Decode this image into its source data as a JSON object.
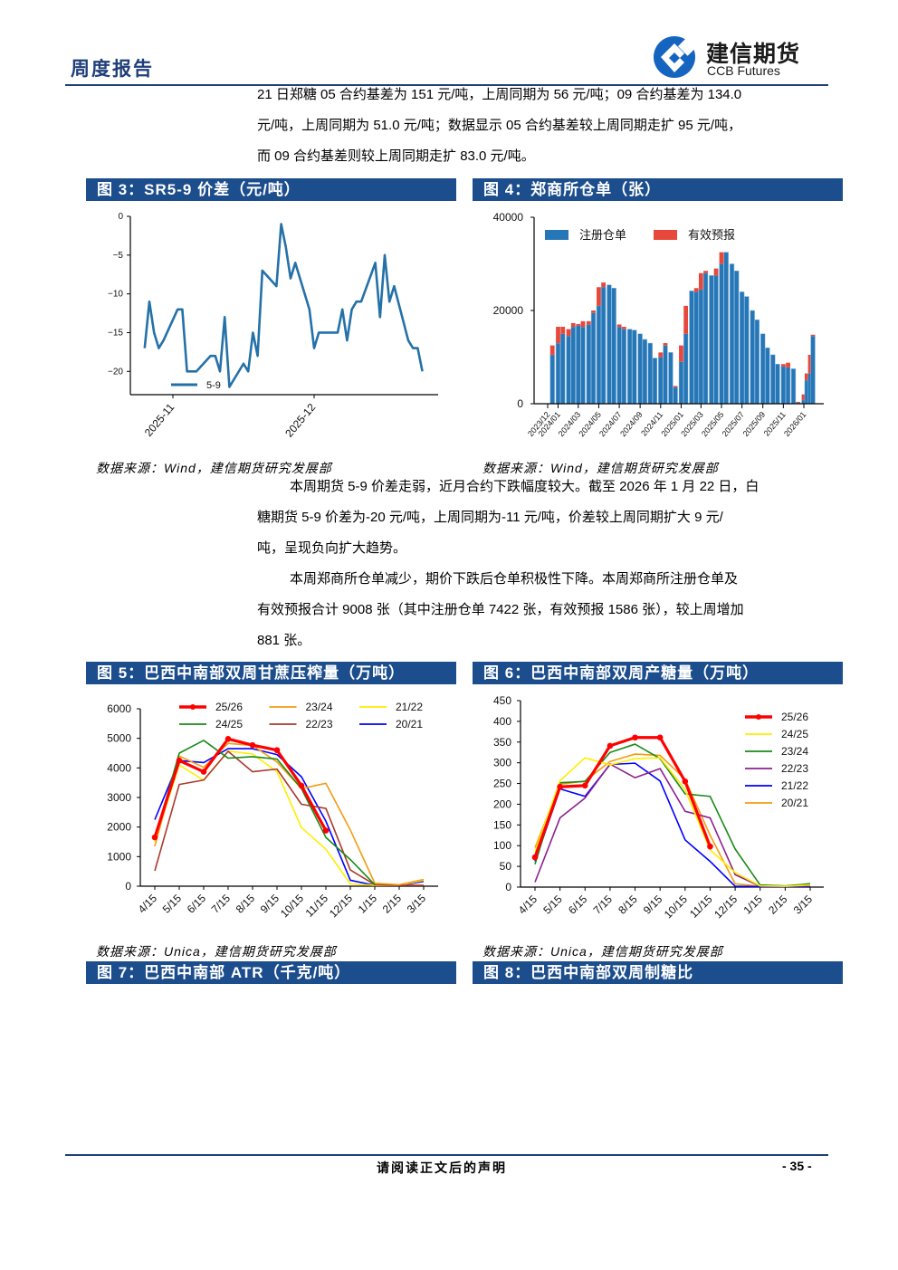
{
  "header": {
    "report_type": "周度报告",
    "logo_name_cn": "建信期货",
    "logo_name_en": "CCB Futures",
    "brand_color": "#1f3f7a"
  },
  "paragraphs": {
    "p1": [
      "21 日郑糖 05 合约基差为 151 元/吨，上周同期为 56 元/吨；09 合约基差为 134.0",
      "元/吨，上周同期为 51.0 元/吨；数据显示 05 合约基差较上周同期走扩 95 元/吨，",
      "而 09 合约基差则较上周同期走扩 83.0 元/吨。"
    ],
    "p2": [
      "本周期货 5-9 价差走弱，近月合约下跌幅度较大。截至 2026 年 1 月 22 日，白",
      "糖期货 5-9 价差为-20 元/吨，上周同期为-11 元/吨，价差较上周同期扩大 9 元/",
      "吨，呈现负向扩大趋势。"
    ],
    "p3": [
      "本周郑商所仓单减少，期价下跌后仓单积极性下降。本周郑商所注册仓单及",
      "有效预报合计 9008 张（其中注册仓单 7422 张，有效预报 1586 张），较上周增加",
      "881 张。"
    ]
  },
  "figures": {
    "fig3": {
      "title": "图 3：SR5-9 价差（元/吨）",
      "source": "数据来源：Wind，建信期货研究发展部"
    },
    "fig4": {
      "title": "图 4：郑商所仓单（张）",
      "source": "数据来源：Wind，建信期货研究发展部"
    },
    "fig5": {
      "title": "图 5：巴西中南部双周甘蔗压榨量（万吨）",
      "source": "数据来源：Unica，建信期货研究发展部"
    },
    "fig6": {
      "title": "图 6：巴西中南部双周产糖量（万吨）",
      "source": "数据来源：Unica，建信期货研究发展部"
    },
    "fig7": {
      "title": "图 7：巴西中南部 ATR（千克/吨）"
    },
    "fig8": {
      "title": "图 8：巴西中南部双周制糖比"
    }
  },
  "chart_data": [
    {
      "id": "fig3",
      "type": "line",
      "ylim": [
        -23,
        0
      ],
      "yticks": [
        0,
        -5,
        -10,
        -15,
        -20
      ],
      "xticks": [
        "2025-11",
        "2025-12"
      ],
      "grid": false,
      "legend": "bottom-left",
      "series": [
        {
          "name": "5-9",
          "color": "#2471a8",
          "x": [
            "2025-10-26",
            "2025-10-27",
            "2025-10-28",
            "2025-10-29",
            "2025-10-30",
            "2025-11-02",
            "2025-11-03",
            "2025-11-04",
            "2025-11-06",
            "2025-11-09",
            "2025-11-10",
            "2025-11-11",
            "2025-11-12",
            "2025-11-13",
            "2025-11-16",
            "2025-11-17",
            "2025-11-18",
            "2025-11-19",
            "2025-11-20",
            "2025-11-23",
            "2025-11-24",
            "2025-11-25",
            "2025-11-26",
            "2025-11-27",
            "2025-11-30",
            "2025-12-01",
            "2025-12-02",
            "2025-12-06",
            "2025-12-07",
            "2025-12-08",
            "2025-12-09",
            "2025-12-10",
            "2025-12-11",
            "2025-12-14",
            "2025-12-15",
            "2025-12-16",
            "2025-12-17",
            "2025-12-18",
            "2025-12-21",
            "2025-12-22",
            "2025-12-23",
            "2025-12-24"
          ],
          "y": [
            -17,
            -11,
            -15,
            -17,
            -16,
            -12,
            -12,
            -20,
            -20,
            -18,
            -18,
            -20,
            -13,
            -22,
            -19,
            -20,
            -15,
            -18,
            -7,
            -9,
            -1,
            -4,
            -8,
            -6,
            -12,
            -17,
            -15,
            -15,
            -12,
            -16,
            -12,
            -11,
            -11,
            -6,
            -13,
            -5,
            -11,
            -9,
            -16,
            -17,
            -17,
            -20
          ]
        }
      ]
    },
    {
      "id": "fig4",
      "type": "bar",
      "stacked": true,
      "ylim": [
        0,
        40000
      ],
      "yticks": [
        0,
        20000,
        40000
      ],
      "xticks": [
        "2023/12",
        "2024/01",
        "2024/03",
        "2024/05",
        "2024/07",
        "2024/09",
        "2024/11",
        "2025/01",
        "2025/03",
        "2025/05",
        "2025/07",
        "2025/09",
        "2025/11",
        "2026/01"
      ],
      "legend": "top-left",
      "x": [
        "2023-12-15",
        "2024-01-01",
        "2024-01-15",
        "2024-02-01",
        "2024-02-15",
        "2024-03-01",
        "2024-03-15",
        "2024-04-01",
        "2024-04-15",
        "2024-05-01",
        "2024-05-15",
        "2024-06-01",
        "2024-06-15",
        "2024-07-01",
        "2024-07-15",
        "2024-08-01",
        "2024-08-15",
        "2024-09-01",
        "2024-09-15",
        "2024-10-01",
        "2024-10-15",
        "2024-11-01",
        "2024-11-15",
        "2024-12-01",
        "2024-12-15",
        "2025-01-01",
        "2025-01-15",
        "2025-02-01",
        "2025-02-15",
        "2025-03-01",
        "2025-03-15",
        "2025-04-01",
        "2025-04-15",
        "2025-05-01",
        "2025-05-15",
        "2025-06-01",
        "2025-06-15",
        "2025-07-01",
        "2025-07-15",
        "2025-08-01",
        "2025-08-15",
        "2025-09-01",
        "2025-09-15",
        "2025-10-01",
        "2025-10-15",
        "2025-11-01",
        "2025-11-15",
        "2025-12-01",
        "2025-12-15",
        "2026-01-01",
        "2026-01-10",
        "2026-01-20",
        "2026-01-28"
      ],
      "series": [
        {
          "name": "注册仓单",
          "color": "#2677b8",
          "values": [
            10500,
            13000,
            15000,
            14500,
            16500,
            16800,
            16500,
            17000,
            19500,
            21000,
            25000,
            25500,
            24800,
            16500,
            16000,
            16000,
            15800,
            15000,
            13800,
            13000,
            9800,
            10000,
            12500,
            11000,
            3500,
            9000,
            15000,
            24200,
            24000,
            24500,
            28000,
            27500,
            27500,
            30000,
            32500,
            30000,
            28500,
            24000,
            23000,
            20000,
            18000,
            15000,
            12000,
            10500,
            8500,
            8000,
            7800,
            7500,
            200,
            800,
            5000,
            6500,
            14500
          ]
        },
        {
          "name": "有效预报",
          "color": "#e8483b",
          "values": [
            2000,
            3500,
            1500,
            1500,
            800,
            300,
            1200,
            700,
            500,
            4000,
            1000,
            0,
            0,
            500,
            500,
            0,
            0,
            0,
            0,
            0,
            0,
            1000,
            500,
            0,
            300,
            3500,
            6000,
            0,
            800,
            3500,
            500,
            0,
            1500,
            2500,
            0,
            0,
            0,
            0,
            0,
            0,
            0,
            0,
            0,
            0,
            0,
            500,
            1000,
            0,
            200,
            1200,
            1500,
            4000,
            300
          ]
        }
      ]
    },
    {
      "id": "fig5",
      "type": "line",
      "ylim": [
        0,
        6000
      ],
      "yticks": [
        0,
        1000,
        2000,
        3000,
        4000,
        5000,
        6000
      ],
      "categories": [
        "4/15",
        "5/15",
        "6/15",
        "7/15",
        "8/15",
        "9/15",
        "10/15",
        "11/15",
        "12/15",
        "1/15",
        "2/15",
        "3/15"
      ],
      "legend": "top",
      "series": [
        {
          "name": "25/26",
          "color": "#ff0000",
          "markers": true,
          "values": [
            1650,
            4250,
            3870,
            4980,
            4770,
            4600,
            3400,
            1880,
            null,
            null,
            null,
            null
          ]
        },
        {
          "name": "24/25",
          "color": "#1a8a1a",
          "values": [
            1600,
            4500,
            4930,
            4330,
            4380,
            4300,
            3300,
            1650,
            900,
            50,
            null,
            null
          ]
        },
        {
          "name": "23/24",
          "color": "#f39c12",
          "values": [
            1350,
            4400,
            4020,
            4830,
            4760,
            4200,
            3300,
            3480,
            1900,
            100,
            50,
            230
          ]
        },
        {
          "name": "22/23",
          "color": "#a93a2e",
          "values": [
            520,
            3440,
            3590,
            4560,
            3870,
            3960,
            2770,
            2630,
            550,
            50,
            30,
            30
          ]
        },
        {
          "name": "21/22",
          "color": "#ffee00",
          "values": [
            1500,
            4100,
            3580,
            4570,
            4470,
            3870,
            1980,
            1250,
            80,
            30,
            30,
            200
          ]
        },
        {
          "name": "20/21",
          "color": "#0000ff",
          "values": [
            2250,
            4250,
            4180,
            4650,
            4650,
            4450,
            3700,
            2200,
            200,
            30,
            20,
            160
          ]
        }
      ]
    },
    {
      "id": "fig6",
      "type": "line",
      "ylim": [
        0,
        450
      ],
      "yticks": [
        0,
        50,
        100,
        150,
        200,
        250,
        300,
        350,
        400,
        450
      ],
      "categories": [
        "4/15",
        "5/15",
        "6/15",
        "7/15",
        "8/15",
        "9/15",
        "10/15",
        "11/15",
        "12/15",
        "1/15",
        "2/15",
        "3/15"
      ],
      "legend": "right",
      "series": [
        {
          "name": "25/26",
          "color": "#ff0000",
          "markers": true,
          "values": [
            72,
            242,
            245,
            341,
            361,
            361,
            255,
            98,
            null,
            null,
            null,
            null
          ]
        },
        {
          "name": "24/25",
          "color": "#ffee00",
          "values": [
            85,
            257,
            312,
            295,
            310,
            312,
            235,
            90,
            35,
            3,
            2,
            5
          ]
        },
        {
          "name": "23/24",
          "color": "#1a8a1a",
          "values": [
            55,
            252,
            255,
            325,
            345,
            310,
            225,
            219,
            92,
            5,
            3,
            8
          ]
        },
        {
          "name": "22/23",
          "color": "#8e1f8e",
          "values": [
            12,
            167,
            215,
            297,
            264,
            286,
            183,
            167,
            30,
            2,
            2,
            3
          ]
        },
        {
          "name": "21/22",
          "color": "#0000ff",
          "values": [
            62,
            237,
            219,
            296,
            299,
            256,
            114,
            62,
            2,
            1,
            1,
            2
          ]
        },
        {
          "name": "20/21",
          "color": "#f39c12",
          "values": [
            95,
            248,
            256,
            303,
            321,
            318,
            260,
            125,
            8,
            2,
            2,
            3
          ]
        }
      ]
    }
  ],
  "footer": {
    "disclaimer": "请阅读正文后的声明",
    "page_number": "- 35 -"
  }
}
